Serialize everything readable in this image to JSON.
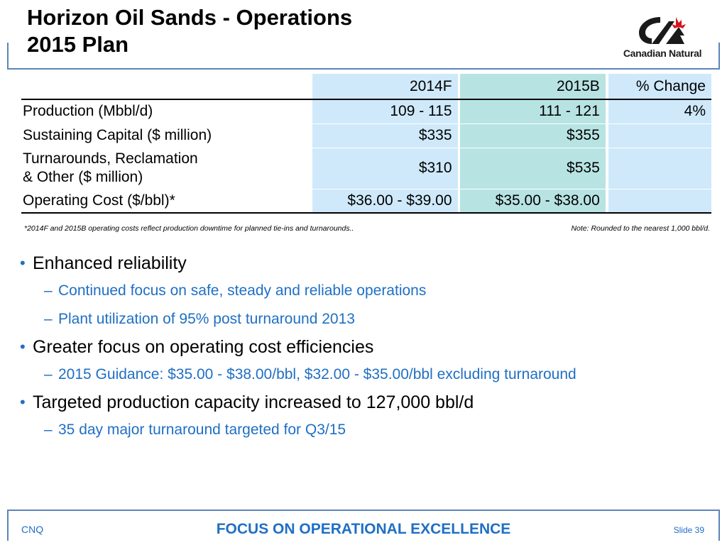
{
  "title": {
    "line1": "Horizon Oil Sands - Operations",
    "line2": "2015 Plan"
  },
  "logo": {
    "name": "Canadian Natural"
  },
  "table": {
    "headers": [
      "",
      "2014F",
      "2015B",
      "% Change"
    ],
    "rows": [
      {
        "label": "Production (Mbbl/d)",
        "c1": "109 - 115",
        "c2": "111 - 121",
        "c3": "4%"
      },
      {
        "label": "Sustaining Capital ($ million)",
        "c1": "$335",
        "c2": "$355",
        "c3": ""
      },
      {
        "label_line1": "Turnarounds, Reclamation",
        "label_line2": "& Other ($ million)",
        "c1": "$310",
        "c2": "$535",
        "c3": ""
      },
      {
        "label": "Operating Cost ($/bbl)*",
        "c1": "$36.00 - $39.00",
        "c2": "$35.00 - $38.00",
        "c3": ""
      }
    ]
  },
  "notes": {
    "left": "*2014F and 2015B operating costs reflect production downtime  for planned tie-ins and turnarounds..",
    "right": "Note: Rounded to the nearest 1,000 bbl/d."
  },
  "bullets": [
    {
      "text": "Enhanced reliability",
      "subs": [
        "Continued focus on safe, steady and reliable operations",
        "Plant utilization of 95% post turnaround 2013"
      ]
    },
    {
      "text": "Greater focus on operating cost efficiencies",
      "subs": [
        "2015 Guidance: $35.00 - $38.00/bbl, $32.00 - $35.00/bbl excluding turnaround"
      ]
    },
    {
      "text": "Targeted production capacity increased to 127,000 bbl/d",
      "subs": [
        "35 day major turnaround targeted for Q3/15"
      ]
    }
  ],
  "footer": {
    "left": "CNQ",
    "center": "FOCUS ON OPERATIONAL EXCELLENCE",
    "right": "Slide 39"
  },
  "colors": {
    "accent": "#1f6fc5",
    "frame": "#5b86b8",
    "cell_light": "#cfe9fb",
    "cell_teal": "#b8e3e3"
  }
}
